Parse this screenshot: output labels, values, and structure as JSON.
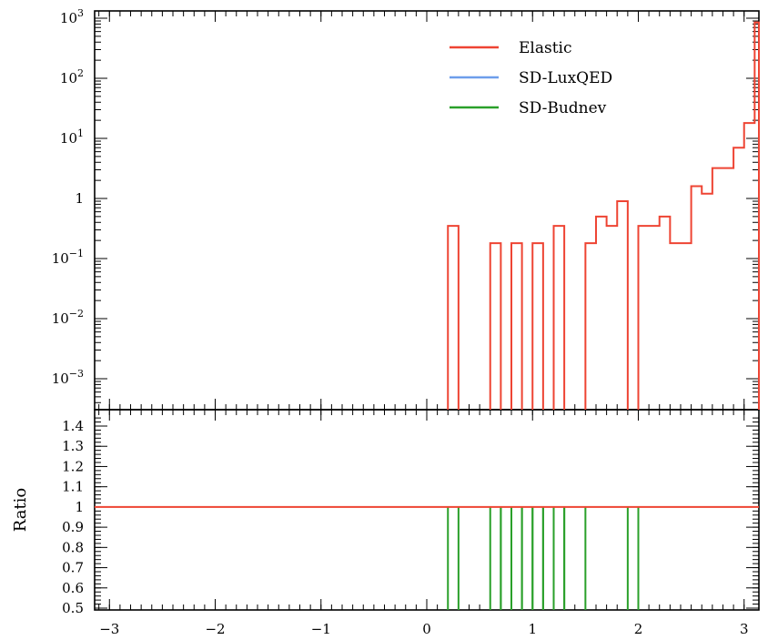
{
  "chart_data": [
    {
      "type": "histogram",
      "panel": "main",
      "y_scale": "log",
      "xlim": [
        -3.14,
        3.14
      ],
      "ylim": [
        0.0003,
        1000
      ],
      "y_tick_labels": [
        "10^3",
        "10^2",
        "10^1",
        "1",
        "10^-1",
        "10^-2",
        "10^-3"
      ],
      "bin_edges": [
        0.2,
        0.3,
        0.6,
        0.7,
        0.8,
        0.9,
        1.0,
        1.1,
        1.2,
        1.3,
        1.5,
        1.6,
        1.7,
        1.8,
        1.9,
        2.0,
        2.2,
        2.3,
        2.5,
        2.6,
        2.7,
        2.9,
        3.0,
        3.1,
        3.14
      ],
      "series": [
        {
          "name": "Elastic",
          "color": "#ee4433",
          "values": [
            0.35,
            null,
            0.18,
            null,
            0.18,
            null,
            0.18,
            null,
            0.35,
            null,
            0.18,
            0.5,
            0.35,
            0.9,
            null,
            0.35,
            0.5,
            0.18,
            1.6,
            1.2,
            3.2,
            7,
            18,
            850
          ]
        },
        {
          "name": "SD-LuxQED",
          "color": "#6d9eeb",
          "values": []
        },
        {
          "name": "SD-Budnev",
          "color": "#2aa02a",
          "values": []
        }
      ],
      "legend_position": "top-right"
    },
    {
      "type": "histogram",
      "panel": "ratio",
      "ylabel": "Ratio",
      "xlim": [
        -3.14,
        3.14
      ],
      "ylim": [
        0.5,
        1.45
      ],
      "y_tick_labels": [
        "1.4",
        "1.3",
        "1.2",
        "1.1",
        "1",
        "0.9",
        "0.8",
        "0.7",
        "0.6",
        "0.5"
      ],
      "x_tick_labels": [
        "-3",
        "-2",
        "-1",
        "0",
        "1",
        "2",
        "3"
      ],
      "reference_line": 1.0,
      "ratio_bins": [
        [
          0.2,
          0.3
        ],
        [
          0.6,
          0.7
        ],
        [
          0.7,
          0.8
        ],
        [
          0.8,
          0.9
        ],
        [
          0.9,
          1.0
        ],
        [
          1.0,
          1.1
        ],
        [
          1.1,
          1.2
        ],
        [
          1.2,
          1.3
        ],
        [
          1.3,
          1.5
        ],
        [
          1.9,
          2.0
        ]
      ],
      "ratio_value": 1.0
    }
  ]
}
